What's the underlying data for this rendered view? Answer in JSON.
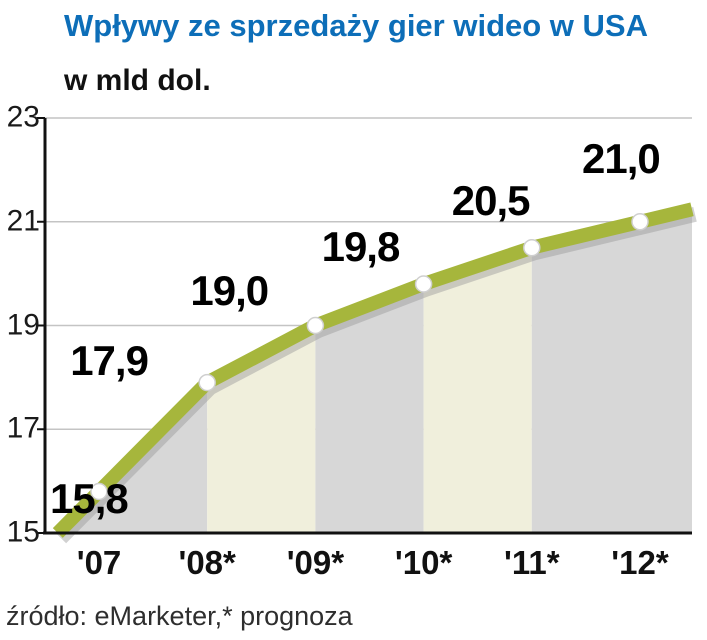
{
  "chart_data": {
    "type": "line",
    "title": "Wpływy ze sprzedaży gier wideo w USA",
    "subtitle": "w mld dol.",
    "source": "źródło: eMarketer,* prognoza",
    "categories": [
      "'07",
      "'08*",
      "'09*",
      "'10*",
      "'11*",
      "'12*"
    ],
    "values": [
      15.8,
      17.9,
      19.0,
      19.8,
      20.5,
      21.0
    ],
    "value_labels": [
      "15,8",
      "17,9",
      "19,0",
      "19,8",
      "20,5",
      "21,0"
    ],
    "ylabel": "w mld dol.",
    "ylim": [
      15,
      23
    ],
    "yticks": [
      15,
      17,
      19,
      21,
      23
    ],
    "grid": true,
    "legend": "none",
    "colors": {
      "title": "#0d6eb8",
      "line": "#a6b63c",
      "marker": "#ffffff",
      "band_gray": "#d7d7d7",
      "band_cream": "#f0efdc",
      "axis": "#111111",
      "gridline": "#c4c4c4"
    }
  }
}
